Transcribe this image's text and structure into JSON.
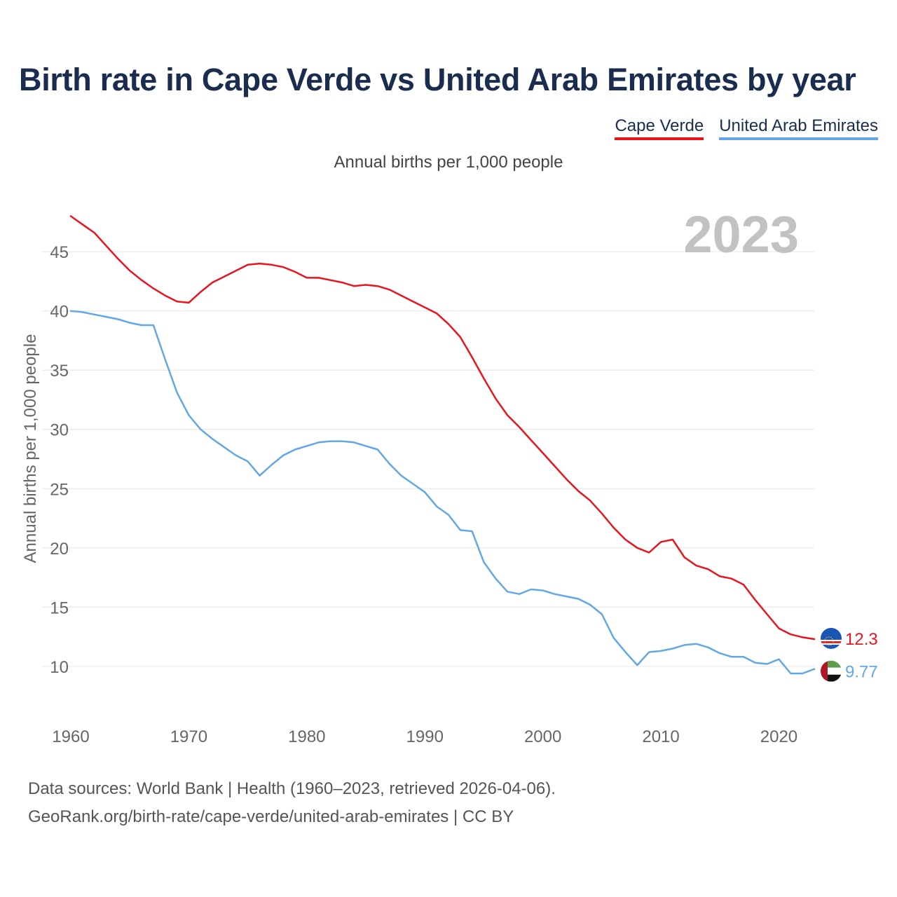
{
  "title": "Birth rate in Cape Verde vs United Arab Emirates by year",
  "subtitle": "Annual births per 1,000 people",
  "footer": {
    "line1": "Data sources: World Bank | Health (1960–2023, retrieved 2026-04-06).",
    "line2": "GeoRank.org/birth-rate/cape-verde/united-arab-emirates | CC BY"
  },
  "chart_data": {
    "type": "line",
    "year_label": "2023",
    "ylabel": "Annual births per 1,000 people",
    "xlabel": "",
    "xlim": [
      1960,
      2023
    ],
    "ylim": [
      6.5,
      48.5
    ],
    "xticks": [
      1960,
      1970,
      1980,
      1990,
      2000,
      2010,
      2020
    ],
    "yticks": [
      10,
      15,
      20,
      25,
      30,
      35,
      40,
      45
    ],
    "grid": true,
    "legend": "top-right",
    "series": [
      {
        "name": "Cape Verde",
        "color": "#e8161c",
        "end_label": "12.3",
        "flag": "cape-verde-flag-icon",
        "x": [
          1960,
          1961,
          1962,
          1963,
          1964,
          1965,
          1966,
          1967,
          1968,
          1969,
          1970,
          1971,
          1972,
          1973,
          1974,
          1975,
          1976,
          1977,
          1978,
          1979,
          1980,
          1981,
          1982,
          1983,
          1984,
          1985,
          1986,
          1987,
          1988,
          1989,
          1990,
          1991,
          1992,
          1993,
          1994,
          1995,
          1996,
          1997,
          1998,
          1999,
          2000,
          2001,
          2002,
          2003,
          2004,
          2005,
          2006,
          2007,
          2008,
          2009,
          2010,
          2011,
          2012,
          2013,
          2014,
          2015,
          2016,
          2017,
          2018,
          2019,
          2020,
          2021,
          2022,
          2023
        ],
        "y": [
          48.0,
          47.3,
          46.6,
          45.5,
          44.4,
          43.4,
          42.6,
          41.9,
          41.3,
          40.8,
          40.7,
          41.6,
          42.4,
          42.9,
          43.4,
          43.9,
          44.0,
          43.9,
          43.7,
          43.3,
          42.8,
          42.8,
          42.6,
          42.4,
          42.1,
          42.2,
          42.1,
          41.8,
          41.3,
          40.8,
          40.3,
          39.8,
          38.9,
          37.8,
          36.1,
          34.3,
          32.6,
          31.2,
          30.2,
          29.1,
          28.0,
          26.9,
          25.8,
          24.8,
          24.0,
          22.9,
          21.7,
          20.7,
          20.0,
          19.6,
          20.5,
          20.7,
          19.2,
          18.5,
          18.2,
          17.6,
          17.4,
          16.9,
          15.6,
          14.4,
          13.2,
          12.7,
          12.45,
          12.3
        ]
      },
      {
        "name": "United Arab Emirates",
        "color": "#62a8e5",
        "end_label": "9.77",
        "flag": "uae-flag-icon",
        "x": [
          1960,
          1961,
          1962,
          1963,
          1964,
          1965,
          1966,
          1967,
          1968,
          1969,
          1970,
          1971,
          1972,
          1973,
          1974,
          1975,
          1976,
          1977,
          1978,
          1979,
          1980,
          1981,
          1982,
          1983,
          1984,
          1985,
          1986,
          1987,
          1988,
          1989,
          1990,
          1991,
          1992,
          1993,
          1994,
          1995,
          1996,
          1997,
          1998,
          1999,
          2000,
          2001,
          2002,
          2003,
          2004,
          2005,
          2006,
          2007,
          2008,
          2009,
          2010,
          2011,
          2012,
          2013,
          2014,
          2015,
          2016,
          2017,
          2018,
          2019,
          2020,
          2021,
          2022,
          2023
        ],
        "y": [
          40.0,
          39.9,
          39.7,
          39.5,
          39.3,
          39.0,
          38.8,
          38.8,
          35.9,
          33.1,
          31.2,
          30.0,
          29.2,
          28.5,
          27.8,
          27.3,
          26.1,
          27.0,
          27.8,
          28.3,
          28.6,
          28.9,
          29.0,
          29.0,
          28.9,
          28.6,
          28.3,
          27.1,
          26.1,
          25.4,
          24.7,
          23.5,
          22.8,
          21.5,
          21.4,
          18.8,
          17.4,
          16.3,
          16.1,
          16.5,
          16.4,
          16.1,
          15.9,
          15.7,
          15.2,
          14.4,
          12.4,
          11.2,
          10.1,
          11.2,
          11.3,
          11.5,
          11.8,
          11.9,
          11.6,
          11.1,
          10.8,
          10.8,
          10.3,
          10.2,
          10.6,
          9.4,
          9.4,
          9.77
        ]
      }
    ]
  }
}
